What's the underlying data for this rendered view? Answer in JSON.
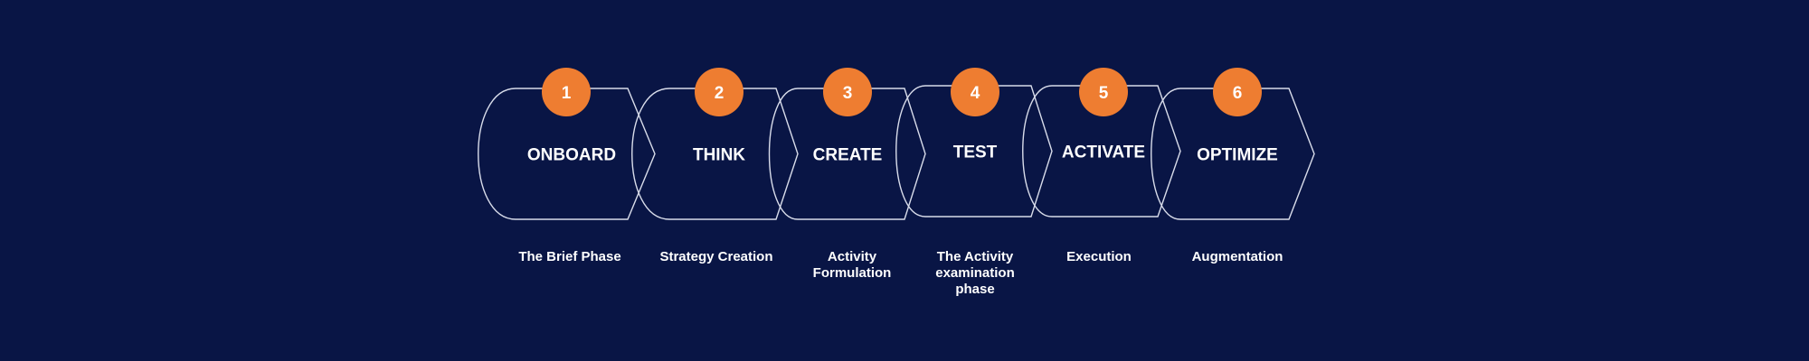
{
  "colors": {
    "background": "#091545",
    "outline": "#d8dcea",
    "badge": "#ee7d31",
    "text": "#ffffff"
  },
  "steps": [
    {
      "number": "1",
      "title": "ONBOARD",
      "caption": "The Brief Phase"
    },
    {
      "number": "2",
      "title": "THINK",
      "caption": "Strategy Creation"
    },
    {
      "number": "3",
      "title": "CREATE",
      "caption": "Activity\nFormulation"
    },
    {
      "number": "4",
      "title": "TEST",
      "caption": "The Activity\nexamination\nphase"
    },
    {
      "number": "5",
      "title": "ACTIVATE",
      "caption": "Execution"
    },
    {
      "number": "6",
      "title": "OPTIMIZE",
      "caption": "Augmentation"
    }
  ]
}
